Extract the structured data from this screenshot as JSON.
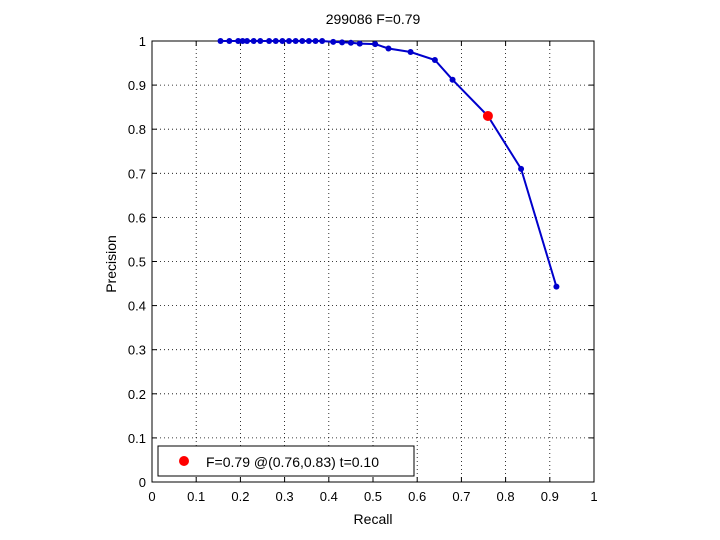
{
  "chart_data": {
    "type": "line",
    "title": "299086 F=0.79",
    "xlabel": "Recall",
    "ylabel": "Precision",
    "xlim": [
      0,
      1
    ],
    "ylim": [
      0,
      1
    ],
    "xticks": [
      "0",
      "0.1",
      "0.2",
      "0.3",
      "0.4",
      "0.5",
      "0.6",
      "0.7",
      "0.8",
      "0.9",
      "1"
    ],
    "yticks": [
      "0",
      "0.1",
      "0.2",
      "0.3",
      "0.4",
      "0.5",
      "0.6",
      "0.7",
      "0.8",
      "0.9",
      "1"
    ],
    "grid": true,
    "line_color": "#0000cc",
    "highlight_color": "#ff0000",
    "series": [
      {
        "x": [
          0.155,
          0.175,
          0.195,
          0.205,
          0.215,
          0.23,
          0.245,
          0.265,
          0.28,
          0.295,
          0.31,
          0.325,
          0.34,
          0.355,
          0.37,
          0.385,
          0.41,
          0.43,
          0.45,
          0.47,
          0.505,
          0.535,
          0.585,
          0.64,
          0.68,
          0.76,
          0.835,
          0.915
        ],
        "y": [
          1.0,
          1.0,
          1.0,
          1.0,
          1.0,
          1.0,
          1.0,
          1.0,
          1.0,
          1.0,
          1.0,
          1.0,
          1.0,
          1.0,
          1.0,
          1.0,
          0.998,
          0.997,
          0.996,
          0.994,
          0.993,
          0.983,
          0.975,
          0.957,
          0.912,
          0.83,
          0.71,
          0.443
        ]
      }
    ],
    "highlight": {
      "x": 0.76,
      "y": 0.83
    },
    "legend": {
      "location": "bottom-left",
      "text": "F=0.79 @(0.76,0.83) t=0.10"
    }
  }
}
